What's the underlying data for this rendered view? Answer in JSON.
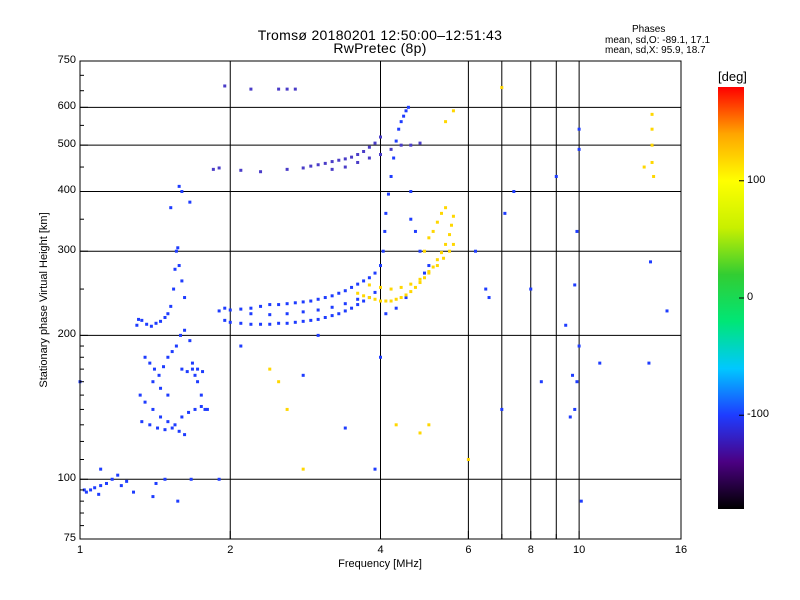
{
  "chart_data": {
    "type": "scatter",
    "title": "Tromsø 20180201 12:50:00–12:51:43",
    "subtitle": "RwPretec (8p)",
    "xlabel": "Frequency [MHz]",
    "ylabel": "Stationary phase Virtual Height [km]",
    "x_scale": "log",
    "y_scale": "log",
    "xlim": [
      1,
      16
    ],
    "ylim": [
      75,
      750
    ],
    "x_ticks": [
      1,
      2,
      4,
      6,
      8,
      10,
      16
    ],
    "x_tick_labels": [
      "1",
      "2",
      "4",
      "6",
      "8",
      "10",
      "16"
    ],
    "x_minor_ticks": [
      7,
      9
    ],
    "y_ticks": [
      75,
      100,
      200,
      300,
      400,
      500,
      600,
      750
    ],
    "y_tick_labels": [
      "75",
      "100",
      "200",
      "300",
      "400",
      "500",
      "600",
      "750"
    ],
    "grid": true,
    "stats": {
      "title": "Phases",
      "line_o": "mean, sd,O: -89.1, 17.1",
      "line_x": "mean, sd,X:  95.9, 18.7"
    },
    "colorbar": {
      "unit": "[deg]",
      "range": [
        -180,
        180
      ],
      "ticks": [
        100,
        0,
        -100
      ],
      "tick_labels": [
        "100",
        "0",
        "-100"
      ],
      "colors": [
        "#000000",
        "#4b0082",
        "#1e3cff",
        "#00c8ff",
        "#00e676",
        "#32cd32",
        "#c8f000",
        "#ffff00",
        "#ffa500",
        "#ff0000"
      ]
    },
    "series": [
      {
        "trace": "low-frequency echoes",
        "color": "#1e3cff",
        "points": [
          [
            1.02,
            95
          ],
          [
            1.03,
            94
          ],
          [
            1.05,
            95
          ],
          [
            1.07,
            96
          ],
          [
            1.09,
            93
          ],
          [
            1.1,
            97
          ],
          [
            1.13,
            98
          ],
          [
            1.16,
            100
          ],
          [
            1.19,
            102
          ],
          [
            1.21,
            97
          ],
          [
            1.24,
            99
          ],
          [
            1.28,
            94
          ]
        ]
      },
      {
        "trace": "E/Es spread echoes ~1.3-1.7 MHz",
        "color": "#1e3cff",
        "points": [
          [
            1.3,
            210
          ],
          [
            1.31,
            216
          ],
          [
            1.33,
            215
          ],
          [
            1.36,
            211
          ],
          [
            1.39,
            209
          ],
          [
            1.42,
            212
          ],
          [
            1.45,
            214
          ],
          [
            1.48,
            218
          ],
          [
            1.5,
            222
          ],
          [
            1.52,
            230
          ],
          [
            1.54,
            250
          ],
          [
            1.55,
            275
          ],
          [
            1.56,
            300
          ],
          [
            1.57,
            305
          ],
          [
            1.58,
            280
          ],
          [
            1.6,
            260
          ],
          [
            1.62,
            240
          ],
          [
            1.35,
            180
          ],
          [
            1.38,
            175
          ],
          [
            1.41,
            170
          ],
          [
            1.44,
            165
          ],
          [
            1.47,
            172
          ],
          [
            1.5,
            180
          ],
          [
            1.53,
            185
          ],
          [
            1.56,
            190
          ],
          [
            1.59,
            200
          ],
          [
            1.62,
            205
          ],
          [
            1.66,
            195
          ],
          [
            1.68,
            175
          ],
          [
            1.7,
            165
          ],
          [
            1.72,
            160
          ],
          [
            1.75,
            150
          ],
          [
            1.78,
            140
          ],
          [
            1.32,
            150
          ],
          [
            1.35,
            145
          ],
          [
            1.4,
            140
          ],
          [
            1.45,
            135
          ],
          [
            1.5,
            132
          ],
          [
            1.55,
            130
          ],
          [
            1.6,
            135
          ],
          [
            1.65,
            138
          ],
          [
            1.7,
            140
          ],
          [
            1.75,
            142
          ],
          [
            1.8,
            140
          ],
          [
            1.33,
            132
          ],
          [
            1.38,
            130
          ],
          [
            1.43,
            128
          ],
          [
            1.48,
            127
          ],
          [
            1.53,
            128
          ],
          [
            1.58,
            126
          ],
          [
            1.62,
            124
          ],
          [
            1.4,
            160
          ],
          [
            1.45,
            155
          ],
          [
            1.5,
            150
          ],
          [
            1.6,
            170
          ],
          [
            1.64,
            168
          ],
          [
            1.68,
            170
          ],
          [
            1.72,
            170
          ],
          [
            1.76,
            168
          ],
          [
            1.58,
            410
          ],
          [
            1.6,
            400
          ],
          [
            1.52,
            370
          ],
          [
            1.66,
            380
          ]
        ]
      },
      {
        "trace": "F-layer O-mode trace (blue)",
        "color": "#1e3cff",
        "points": [
          [
            1.9,
            225
          ],
          [
            1.95,
            228
          ],
          [
            2.0,
            226
          ],
          [
            2.1,
            227
          ],
          [
            2.2,
            228
          ],
          [
            2.3,
            230
          ],
          [
            2.4,
            232
          ],
          [
            2.5,
            232
          ],
          [
            2.6,
            233
          ],
          [
            2.7,
            234
          ],
          [
            2.8,
            235
          ],
          [
            2.9,
            236
          ],
          [
            3.0,
            238
          ],
          [
            3.1,
            240
          ],
          [
            3.2,
            242
          ],
          [
            3.3,
            245
          ],
          [
            3.4,
            248
          ],
          [
            3.5,
            252
          ],
          [
            3.6,
            256
          ],
          [
            3.7,
            260
          ],
          [
            3.8,
            264
          ],
          [
            3.9,
            270
          ],
          [
            4.0,
            280
          ],
          [
            4.05,
            300
          ],
          [
            4.08,
            330
          ],
          [
            4.1,
            360
          ],
          [
            4.15,
            395
          ],
          [
            4.2,
            430
          ],
          [
            4.25,
            470
          ],
          [
            4.3,
            510
          ],
          [
            4.35,
            540
          ],
          [
            4.4,
            560
          ],
          [
            4.45,
            575
          ],
          [
            4.5,
            590
          ],
          [
            4.55,
            600
          ],
          [
            1.95,
            215
          ],
          [
            2.0,
            213
          ],
          [
            2.1,
            212
          ],
          [
            2.2,
            211
          ],
          [
            2.3,
            211
          ],
          [
            2.4,
            211
          ],
          [
            2.5,
            212
          ],
          [
            2.6,
            212
          ],
          [
            2.7,
            213
          ],
          [
            2.8,
            214
          ],
          [
            2.9,
            215
          ],
          [
            3.0,
            216
          ],
          [
            3.1,
            218
          ],
          [
            3.2,
            220
          ],
          [
            3.3,
            222
          ],
          [
            3.4,
            225
          ],
          [
            3.5,
            228
          ],
          [
            3.6,
            232
          ],
          [
            3.7,
            236
          ],
          [
            3.8,
            240
          ],
          [
            3.9,
            246
          ],
          [
            2.2,
            222
          ],
          [
            2.4,
            221
          ],
          [
            2.6,
            222
          ],
          [
            2.8,
            224
          ],
          [
            3.0,
            226
          ],
          [
            3.2,
            229
          ],
          [
            3.4,
            233
          ],
          [
            3.6,
            238
          ],
          [
            4.6,
            350
          ],
          [
            4.7,
            330
          ],
          [
            4.8,
            300
          ],
          [
            4.9,
            270
          ],
          [
            4.5,
            240
          ],
          [
            4.3,
            228
          ],
          [
            4.1,
            222
          ]
        ]
      },
      {
        "trace": "F-layer oblique/2-hop trace",
        "color": "#4a3cc8",
        "points": [
          [
            1.85,
            445
          ],
          [
            1.9,
            448
          ],
          [
            2.1,
            443
          ],
          [
            2.3,
            440
          ],
          [
            2.6,
            445
          ],
          [
            2.8,
            448
          ],
          [
            2.9,
            452
          ],
          [
            3.0,
            455
          ],
          [
            3.1,
            458
          ],
          [
            3.2,
            462
          ],
          [
            3.3,
            465
          ],
          [
            3.4,
            468
          ],
          [
            3.5,
            472
          ],
          [
            3.6,
            478
          ],
          [
            3.7,
            485
          ],
          [
            3.8,
            495
          ],
          [
            3.9,
            505
          ],
          [
            4.0,
            520
          ],
          [
            3.2,
            445
          ],
          [
            3.4,
            450
          ],
          [
            3.6,
            460
          ],
          [
            3.8,
            470
          ],
          [
            4.0,
            478
          ],
          [
            4.2,
            490
          ],
          [
            4.4,
            500
          ],
          [
            4.6,
            500
          ],
          [
            4.8,
            505
          ],
          [
            2.2,
            655
          ],
          [
            2.5,
            655
          ],
          [
            2.6,
            655
          ],
          [
            2.7,
            655
          ],
          [
            1.95,
            665
          ]
        ]
      },
      {
        "trace": "X-mode trace (yellow/orange)",
        "color": "#ffd700",
        "points": [
          [
            3.6,
            245
          ],
          [
            3.7,
            242
          ],
          [
            3.8,
            240
          ],
          [
            3.9,
            238
          ],
          [
            4.0,
            236
          ],
          [
            4.1,
            236
          ],
          [
            4.2,
            236
          ],
          [
            4.3,
            238
          ],
          [
            4.4,
            240
          ],
          [
            4.5,
            243
          ],
          [
            4.6,
            247
          ],
          [
            4.7,
            252
          ],
          [
            4.8,
            258
          ],
          [
            4.9,
            264
          ],
          [
            5.0,
            270
          ],
          [
            5.1,
            278
          ],
          [
            5.2,
            288
          ],
          [
            5.3,
            298
          ],
          [
            5.4,
            310
          ],
          [
            5.5,
            325
          ],
          [
            5.55,
            340
          ],
          [
            5.6,
            355
          ],
          [
            3.8,
            255
          ],
          [
            4.0,
            252
          ],
          [
            4.2,
            250
          ],
          [
            4.4,
            252
          ],
          [
            4.6,
            256
          ],
          [
            4.8,
            262
          ],
          [
            5.0,
            272
          ],
          [
            5.2,
            280
          ],
          [
            5.35,
            290
          ],
          [
            5.5,
            300
          ],
          [
            5.6,
            310
          ],
          [
            4.9,
            300
          ],
          [
            5.0,
            320
          ],
          [
            5.1,
            330
          ],
          [
            5.2,
            345
          ],
          [
            5.3,
            360
          ],
          [
            5.4,
            370
          ],
          [
            5.6,
            590
          ],
          [
            5.4,
            560
          ],
          [
            7.0,
            660
          ],
          [
            14.0,
            580
          ],
          [
            14.0,
            540
          ],
          [
            14.0,
            500
          ],
          [
            14.0,
            460
          ],
          [
            14.1,
            430
          ],
          [
            13.5,
            450
          ],
          [
            2.8,
            105
          ],
          [
            2.4,
            170
          ],
          [
            2.5,
            160
          ],
          [
            2.6,
            140
          ],
          [
            4.3,
            130
          ],
          [
            4.8,
            125
          ],
          [
            5.0,
            130
          ],
          [
            6.0,
            110
          ]
        ]
      },
      {
        "trace": "scattered noise points",
        "color": "#1e3cff",
        "points": [
          [
            1.9,
            100
          ],
          [
            2.8,
            165
          ],
          [
            3.4,
            128
          ],
          [
            3.9,
            105
          ],
          [
            4.0,
            180
          ],
          [
            5.0,
            280
          ],
          [
            6.2,
            300
          ],
          [
            6.6,
            240
          ],
          [
            7.1,
            360
          ],
          [
            7.4,
            400
          ],
          [
            8.0,
            250
          ],
          [
            8.4,
            160
          ],
          [
            9.0,
            430
          ],
          [
            9.4,
            210
          ],
          [
            9.6,
            135
          ],
          [
            9.8,
            255
          ],
          [
            9.9,
            330
          ],
          [
            10.0,
            190
          ],
          [
            10.0,
            540
          ],
          [
            10.0,
            490
          ],
          [
            10.1,
            90
          ],
          [
            11.0,
            175
          ],
          [
            13.8,
            175
          ],
          [
            13.9,
            285
          ],
          [
            15.0,
            225
          ],
          [
            2.1,
            190
          ],
          [
            3.0,
            200
          ],
          [
            4.6,
            400
          ],
          [
            1.67,
            100
          ],
          [
            1.57,
            90
          ],
          [
            1.48,
            100
          ],
          [
            1.42,
            98
          ],
          [
            1.4,
            92
          ],
          [
            1.1,
            105
          ],
          [
            1.0,
            160
          ],
          [
            6.5,
            250
          ],
          [
            7.0,
            140
          ],
          [
            9.7,
            165
          ],
          [
            9.9,
            160
          ],
          [
            9.8,
            140
          ]
        ]
      }
    ]
  }
}
